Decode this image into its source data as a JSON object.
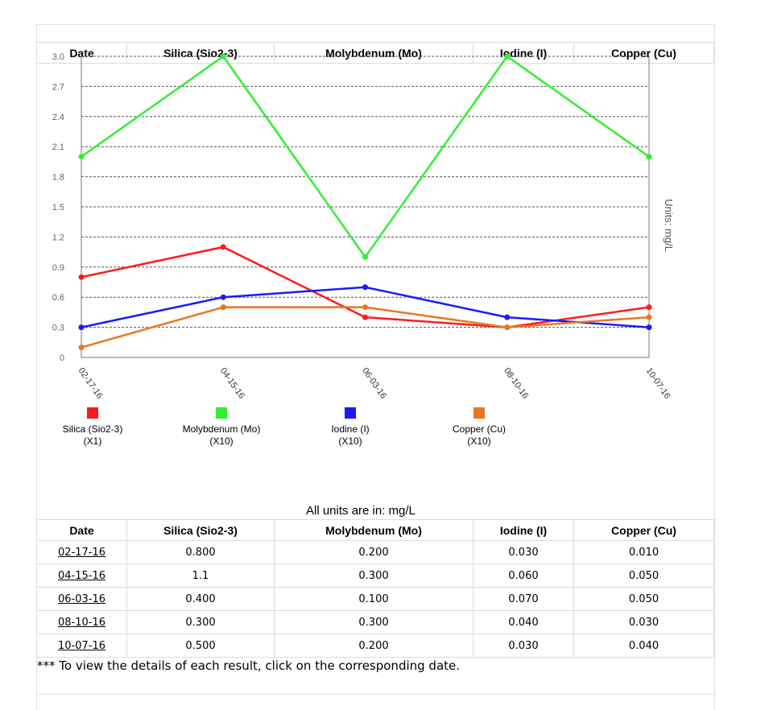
{
  "columns": [
    "Date",
    "Silica (Sio2-3)",
    "Molybdenum (Mo)",
    "Iodine (I)",
    "Copper (Cu)"
  ],
  "rows": [
    [
      "02-17-16",
      "0.800",
      "0.200",
      "0.030",
      "0.010"
    ],
    [
      "04-15-16",
      "1.1",
      "0.300",
      "0.060",
      "0.050"
    ],
    [
      "06-03-16",
      "0.400",
      "0.100",
      "0.070",
      "0.050"
    ],
    [
      "08-10-16",
      "0.300",
      "0.300",
      "0.040",
      "0.030"
    ],
    [
      "10-07-16",
      "0.500",
      "0.200",
      "0.030",
      "0.040"
    ]
  ],
  "units_note": "All units are in: mg/L",
  "footnote": "*** To view the details of each result, click on the corresponding date.",
  "chart_data": {
    "type": "line",
    "x": [
      "02-17-16",
      "04-15-16",
      "06-03-16",
      "08-10-16",
      "10-07-16"
    ],
    "ylabel": "Units: mg/L",
    "ylim": [
      0,
      3.0
    ],
    "yticks": [
      "0",
      "0.3",
      "0.6",
      "0.9",
      "1.2",
      "1.5",
      "1.8",
      "2.1",
      "2.4",
      "2.7",
      "3.0"
    ],
    "grid": true,
    "legend_position": "bottom",
    "series": [
      {
        "name": "Silica (Sio2-3)",
        "scale": "(X1)",
        "color": "#ff1a1a",
        "values": [
          0.8,
          1.1,
          0.4,
          0.3,
          0.5
        ]
      },
      {
        "name": "Molybdenum (Mo)",
        "scale": "(X10)",
        "color": "#33ee33",
        "values": [
          2.0,
          3.0,
          1.0,
          3.0,
          2.0
        ]
      },
      {
        "name": "Iodine (I)",
        "scale": "(X10)",
        "color": "#1a1aff",
        "values": [
          0.3,
          0.6,
          0.7,
          0.4,
          0.3
        ]
      },
      {
        "name": "Copper (Cu)",
        "scale": "(X10)",
        "color": "#e87722",
        "values": [
          0.1,
          0.5,
          0.5,
          0.3,
          0.4
        ]
      }
    ]
  }
}
